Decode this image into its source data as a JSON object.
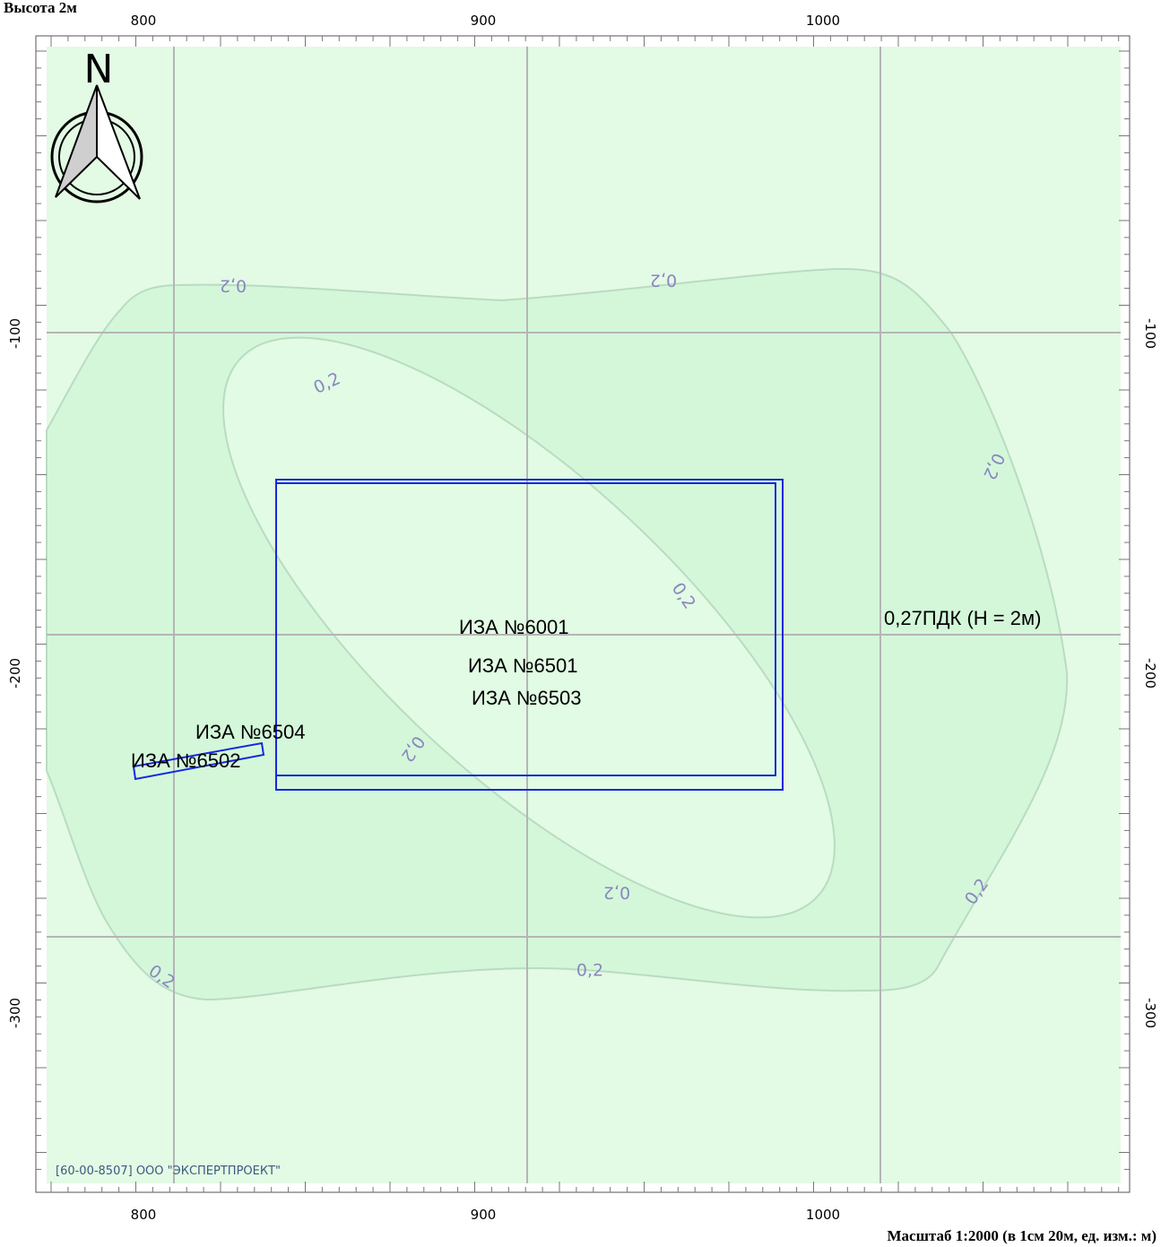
{
  "header": {
    "height_label": "Высота 2м"
  },
  "north": "N",
  "axes": {
    "x_labels": [
      800,
      900,
      1000
    ],
    "y_labels": [
      -100,
      -200,
      -300
    ]
  },
  "isolines": [
    "0,2",
    "0,2",
    "0,2",
    "0,2",
    "0,2",
    "0,2",
    "0,2",
    "0,2",
    "0,2",
    "0,2"
  ],
  "sources": [
    "ИЗА №6001",
    "ИЗА №6501",
    "ИЗА №6503",
    "ИЗА №6504",
    "ИЗА №6502"
  ],
  "annotation": "0,27ПДК (Н = 2м)",
  "footer": {
    "organization": "[60-00-8507] ООО \"ЭКСПЕРТПРОЕКТ\"",
    "scale": "Масштаб 1:2000 (в 1см 20м, ед. изм.: м)"
  }
}
